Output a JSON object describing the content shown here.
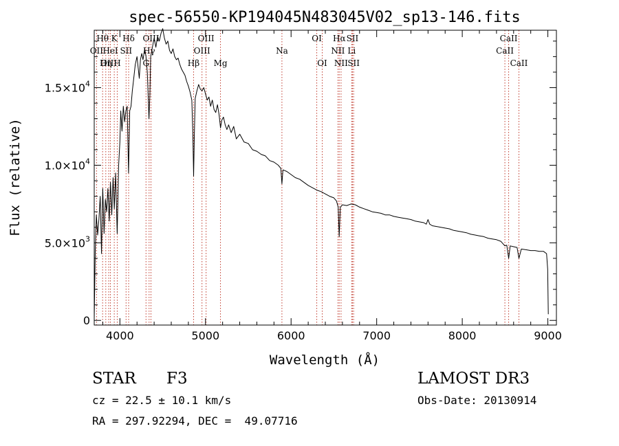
{
  "chart_data": {
    "type": "line",
    "title": "spec-56550-KP194045N483045V02_sp13-146.fits",
    "xlabel": "Wavelength (Å)",
    "ylabel": "Flux (relative)",
    "xlim": [
      3700,
      9100
    ],
    "ylim": [
      -300,
      18700
    ],
    "x_ticks": [
      {
        "value": 4000,
        "label": "4000"
      },
      {
        "value": 5000,
        "label": "5000"
      },
      {
        "value": 6000,
        "label": "6000"
      },
      {
        "value": 7000,
        "label": "7000"
      },
      {
        "value": 8000,
        "label": "8000"
      },
      {
        "value": 9000,
        "label": "9000"
      }
    ],
    "y_ticks": [
      {
        "value": 0,
        "label": "0",
        "mantissa": "",
        "exponent": ""
      },
      {
        "value": 5000,
        "label": "",
        "mantissa": "5.0×10",
        "exponent": "3"
      },
      {
        "value": 10000,
        "label": "",
        "mantissa": "1.0×10",
        "exponent": "4"
      },
      {
        "value": 15000,
        "label": "",
        "mantissa": "1.5×10",
        "exponent": "4"
      }
    ],
    "series": [
      {
        "name": "spectrum",
        "color": "#000000",
        "points": [
          [
            3700,
            100
          ],
          [
            3712,
            4500
          ],
          [
            3725,
            6800
          ],
          [
            3740,
            5500
          ],
          [
            3755,
            6500
          ],
          [
            3770,
            8000
          ],
          [
            3785,
            4300
          ],
          [
            3800,
            8500
          ],
          [
            3815,
            5600
          ],
          [
            3830,
            7800
          ],
          [
            3845,
            7000
          ],
          [
            3860,
            8500
          ],
          [
            3875,
            6400
          ],
          [
            3890,
            8900
          ],
          [
            3905,
            6800
          ],
          [
            3920,
            9200
          ],
          [
            3935,
            7200
          ],
          [
            3950,
            9500
          ],
          [
            3968,
            5600
          ],
          [
            3985,
            10000
          ],
          [
            4000,
            11500
          ],
          [
            4010,
            13500
          ],
          [
            4025,
            12200
          ],
          [
            4040,
            13800
          ],
          [
            4055,
            12800
          ],
          [
            4070,
            13500
          ],
          [
            4085,
            13800
          ],
          [
            4101,
            9500
          ],
          [
            4115,
            13500
          ],
          [
            4130,
            13800
          ],
          [
            4145,
            14800
          ],
          [
            4160,
            15500
          ],
          [
            4180,
            16500
          ],
          [
            4200,
            17000
          ],
          [
            4215,
            16200
          ],
          [
            4226,
            15600
          ],
          [
            4240,
            16800
          ],
          [
            4255,
            17200
          ],
          [
            4270,
            16800
          ],
          [
            4290,
            17500
          ],
          [
            4305,
            17000
          ],
          [
            4320,
            16000
          ],
          [
            4340,
            13000
          ],
          [
            4350,
            14500
          ],
          [
            4360,
            17000
          ],
          [
            4380,
            17600
          ],
          [
            4400,
            18200
          ],
          [
            4420,
            17600
          ],
          [
            4440,
            18300
          ],
          [
            4460,
            18000
          ],
          [
            4480,
            18500
          ],
          [
            4500,
            18800
          ],
          [
            4520,
            18200
          ],
          [
            4540,
            17800
          ],
          [
            4560,
            18000
          ],
          [
            4580,
            17400
          ],
          [
            4600,
            17200
          ],
          [
            4620,
            17500
          ],
          [
            4640,
            17000
          ],
          [
            4660,
            16800
          ],
          [
            4680,
            16900
          ],
          [
            4700,
            16500
          ],
          [
            4720,
            16200
          ],
          [
            4740,
            16000
          ],
          [
            4760,
            15800
          ],
          [
            4780,
            15400
          ],
          [
            4800,
            15100
          ],
          [
            4820,
            14700
          ],
          [
            4840,
            14200
          ],
          [
            4852,
            12000
          ],
          [
            4861,
            9300
          ],
          [
            4870,
            12000
          ],
          [
            4880,
            14300
          ],
          [
            4900,
            14800
          ],
          [
            4920,
            15200
          ],
          [
            4940,
            14900
          ],
          [
            4960,
            14800
          ],
          [
            4980,
            15000
          ],
          [
            5000,
            14600
          ],
          [
            5020,
            14200
          ],
          [
            5040,
            14400
          ],
          [
            5060,
            13800
          ],
          [
            5080,
            14200
          ],
          [
            5100,
            13600
          ],
          [
            5120,
            13400
          ],
          [
            5140,
            13900
          ],
          [
            5160,
            13200
          ],
          [
            5175,
            12400
          ],
          [
            5190,
            12900
          ],
          [
            5210,
            13100
          ],
          [
            5230,
            12600
          ],
          [
            5250,
            12300
          ],
          [
            5270,
            12600
          ],
          [
            5300,
            12100
          ],
          [
            5330,
            12500
          ],
          [
            5360,
            11700
          ],
          [
            5400,
            12000
          ],
          [
            5450,
            11500
          ],
          [
            5500,
            11400
          ],
          [
            5550,
            11000
          ],
          [
            5600,
            10900
          ],
          [
            5650,
            10700
          ],
          [
            5700,
            10600
          ],
          [
            5750,
            10300
          ],
          [
            5800,
            10200
          ],
          [
            5850,
            10000
          ],
          [
            5880,
            9800
          ],
          [
            5893,
            8800
          ],
          [
            5905,
            9700
          ],
          [
            5950,
            9600
          ],
          [
            6000,
            9400
          ],
          [
            6050,
            9200
          ],
          [
            6100,
            9100
          ],
          [
            6150,
            8900
          ],
          [
            6200,
            8700
          ],
          [
            6250,
            8550
          ],
          [
            6300,
            8400
          ],
          [
            6350,
            8300
          ],
          [
            6400,
            8150
          ],
          [
            6450,
            8000
          ],
          [
            6500,
            7900
          ],
          [
            6530,
            7700
          ],
          [
            6550,
            7300
          ],
          [
            6562,
            5400
          ],
          [
            6575,
            7300
          ],
          [
            6600,
            7450
          ],
          [
            6650,
            7400
          ],
          [
            6700,
            7500
          ],
          [
            6750,
            7450
          ],
          [
            6800,
            7300
          ],
          [
            6850,
            7200
          ],
          [
            6900,
            7100
          ],
          [
            6950,
            7000
          ],
          [
            7000,
            6950
          ],
          [
            7050,
            6900
          ],
          [
            7100,
            6800
          ],
          [
            7150,
            6800
          ],
          [
            7200,
            6700
          ],
          [
            7250,
            6650
          ],
          [
            7300,
            6600
          ],
          [
            7350,
            6550
          ],
          [
            7400,
            6500
          ],
          [
            7450,
            6400
          ],
          [
            7500,
            6350
          ],
          [
            7550,
            6300
          ],
          [
            7580,
            6200
          ],
          [
            7600,
            6500
          ],
          [
            7620,
            6200
          ],
          [
            7650,
            6100
          ],
          [
            7700,
            6050
          ],
          [
            7750,
            6000
          ],
          [
            7800,
            5950
          ],
          [
            7850,
            5900
          ],
          [
            7900,
            5800
          ],
          [
            7950,
            5750
          ],
          [
            8000,
            5700
          ],
          [
            8050,
            5650
          ],
          [
            8100,
            5550
          ],
          [
            8150,
            5500
          ],
          [
            8200,
            5450
          ],
          [
            8250,
            5400
          ],
          [
            8300,
            5300
          ],
          [
            8350,
            5250
          ],
          [
            8400,
            5200
          ],
          [
            8450,
            5100
          ],
          [
            8498,
            4800
          ],
          [
            8520,
            4850
          ],
          [
            8542,
            4000
          ],
          [
            8560,
            4800
          ],
          [
            8600,
            4750
          ],
          [
            8640,
            4700
          ],
          [
            8662,
            4000
          ],
          [
            8690,
            4600
          ],
          [
            8750,
            4550
          ],
          [
            8800,
            4500
          ],
          [
            8850,
            4500
          ],
          [
            8900,
            4450
          ],
          [
            8950,
            4450
          ],
          [
            8985,
            4300
          ],
          [
            8998,
            3300
          ],
          [
            9005,
            400
          ]
        ]
      }
    ],
    "line_markers": [
      {
        "name": "Hθ",
        "wavelength": 3798,
        "label_row": 0
      },
      {
        "name": "OII",
        "wavelength": 3727,
        "label_row": 1
      },
      {
        "name": "OIII",
        "wavelength": 3869,
        "label_row": 2
      },
      {
        "name": "K",
        "wavelength": 3934,
        "label_row": 0
      },
      {
        "name": "HeI",
        "wavelength": 3889,
        "label_row": 1
      },
      {
        "name": "Hη",
        "wavelength": 3835,
        "label_row": 2
      },
      {
        "name": "Hδ",
        "wavelength": 4102,
        "label_row": 0
      },
      {
        "name": "SII",
        "wavelength": 4072,
        "label_row": 1
      },
      {
        "name": "H",
        "wavelength": 3969,
        "label_row": 2
      },
      {
        "name": "OIII",
        "wavelength": 4363,
        "label_row": 0
      },
      {
        "name": "Hγ",
        "wavelength": 4341,
        "label_row": 1
      },
      {
        "name": "G",
        "wavelength": 4305,
        "label_row": 2
      },
      {
        "name": "Hβ",
        "wavelength": 4861,
        "label_row": 3
      },
      {
        "name": "OIII",
        "wavelength": 5007,
        "label_row": 0
      },
      {
        "name": "OIII",
        "wavelength": 4959,
        "label_row": 1
      },
      {
        "name": "Mg",
        "wavelength": 5175,
        "label_row": 3
      },
      {
        "name": "Na",
        "wavelength": 5893,
        "label_row": 1
      },
      {
        "name": "OI",
        "wavelength": 6300,
        "label_row": 0
      },
      {
        "name": "OI",
        "wavelength": 6364,
        "label_row": 2
      },
      {
        "name": "Hα",
        "wavelength": 6563,
        "label_row": 0
      },
      {
        "name": "NII",
        "wavelength": 6548,
        "label_row": 1
      },
      {
        "name": "NII",
        "wavelength": 6584,
        "label_row": 2
      },
      {
        "name": "SII",
        "wavelength": 6717,
        "label_row": 0
      },
      {
        "name": "Li",
        "wavelength": 6708,
        "label_row": 1
      },
      {
        "name": "SII",
        "wavelength": 6731,
        "label_row": 2
      },
      {
        "name": "CaII",
        "wavelength": 8542,
        "label_row": 0
      },
      {
        "name": "CaII",
        "wavelength": 8498,
        "label_row": 1
      },
      {
        "name": "CaII",
        "wavelength": 8662,
        "label_row": 2
      }
    ]
  },
  "info": {
    "object_class": "STAR",
    "subclass": "F3",
    "survey": "LAMOST DR3",
    "redshift": "cz = 22.5 ± 10.1 km/s",
    "obs_date": "Obs-Date: 20130914",
    "coords": "RA = 297.92294, DEC =  49.07716"
  },
  "colors": {
    "marker_line": "#c0392b",
    "axis": "#000000",
    "spectrum": "#000000"
  }
}
